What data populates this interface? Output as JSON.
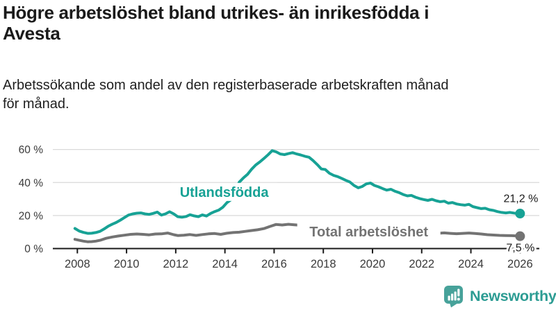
{
  "header": {
    "title_lines": [
      "Högre arbetslöshet bland utrikes- än inrikesfödda i",
      "Avesta"
    ],
    "subtitle_lines": [
      "Arbetssökande som andel av den registerbaserade arbetskraften månad",
      "för månad."
    ]
  },
  "chart_data": {
    "type": "line",
    "title": "Högre arbetslöshet bland utrikes- än inrikesfödda i Avesta",
    "subtitle": "Arbetssökande som andel av den registerbaserade arbetskraften månad för månad.",
    "xlabel": "",
    "ylabel": "",
    "x_ticks": [
      2008,
      2010,
      2012,
      2014,
      2016,
      2018,
      2020,
      2022,
      2024,
      2026
    ],
    "y_ticks": [
      0,
      20,
      40,
      60
    ],
    "y_tick_suffix": " %",
    "xlim": [
      2007.9,
      2026.8
    ],
    "ylim": [
      0,
      65
    ],
    "grid": true,
    "grid_color": "#d9d9d9",
    "axis_color": "#1a1a1a",
    "series": [
      {
        "name": "Utlandsfödda",
        "color": "#17a295",
        "end_label": "21,2 %",
        "end_value": 21.2,
        "label_anchor": [
          2013.97,
          34.3
        ],
        "label_box": [
          152,
          26
        ],
        "end_label_offset": [
          26,
          -16.5
        ],
        "points": [
          [
            2007.9,
            12.2
          ],
          [
            2008.08,
            10.6
          ],
          [
            2008.25,
            9.8
          ],
          [
            2008.42,
            9.2
          ],
          [
            2008.58,
            9.3
          ],
          [
            2008.75,
            9.7
          ],
          [
            2008.92,
            10.4
          ],
          [
            2009.08,
            11.8
          ],
          [
            2009.25,
            13.5
          ],
          [
            2009.42,
            14.8
          ],
          [
            2009.58,
            15.8
          ],
          [
            2009.75,
            17.2
          ],
          [
            2009.92,
            18.8
          ],
          [
            2010.08,
            20.3
          ],
          [
            2010.25,
            21.0
          ],
          [
            2010.42,
            21.4
          ],
          [
            2010.58,
            21.6
          ],
          [
            2010.75,
            21.0
          ],
          [
            2010.92,
            20.7
          ],
          [
            2011.08,
            21.3
          ],
          [
            2011.25,
            22.1
          ],
          [
            2011.42,
            20.3
          ],
          [
            2011.58,
            21.0
          ],
          [
            2011.75,
            22.3
          ],
          [
            2011.92,
            21.0
          ],
          [
            2012.08,
            19.3
          ],
          [
            2012.25,
            19.0
          ],
          [
            2012.42,
            19.4
          ],
          [
            2012.58,
            20.5
          ],
          [
            2012.75,
            19.8
          ],
          [
            2012.92,
            19.3
          ],
          [
            2013.08,
            20.4
          ],
          [
            2013.25,
            19.7
          ],
          [
            2013.42,
            21.3
          ],
          [
            2013.58,
            22.4
          ],
          [
            2013.75,
            23.3
          ],
          [
            2013.92,
            25.1
          ],
          [
            2014.08,
            27.8
          ],
          [
            2014.25,
            29.6
          ],
          [
            2014.42,
            34.5
          ],
          [
            2014.58,
            40.2
          ],
          [
            2014.75,
            42.8
          ],
          [
            2014.92,
            45.0
          ],
          [
            2015.08,
            48.0
          ],
          [
            2015.25,
            50.6
          ],
          [
            2015.42,
            52.5
          ],
          [
            2015.58,
            54.5
          ],
          [
            2015.75,
            56.8
          ],
          [
            2015.92,
            59.3
          ],
          [
            2016.08,
            58.6
          ],
          [
            2016.25,
            57.3
          ],
          [
            2016.42,
            56.9
          ],
          [
            2016.58,
            57.5
          ],
          [
            2016.75,
            58.1
          ],
          [
            2016.92,
            57.3
          ],
          [
            2017.08,
            56.7
          ],
          [
            2017.25,
            55.9
          ],
          [
            2017.42,
            55.3
          ],
          [
            2017.58,
            53.4
          ],
          [
            2017.75,
            50.9
          ],
          [
            2017.92,
            48.2
          ],
          [
            2018.08,
            47.9
          ],
          [
            2018.25,
            45.6
          ],
          [
            2018.42,
            44.3
          ],
          [
            2018.58,
            43.6
          ],
          [
            2018.75,
            42.5
          ],
          [
            2018.92,
            41.3
          ],
          [
            2019.08,
            40.3
          ],
          [
            2019.25,
            38.2
          ],
          [
            2019.42,
            36.8
          ],
          [
            2019.58,
            37.6
          ],
          [
            2019.75,
            39.2
          ],
          [
            2019.92,
            39.7
          ],
          [
            2020.08,
            38.2
          ],
          [
            2020.25,
            37.4
          ],
          [
            2020.42,
            36.3
          ],
          [
            2020.58,
            35.4
          ],
          [
            2020.75,
            35.9
          ],
          [
            2020.92,
            34.7
          ],
          [
            2021.08,
            33.9
          ],
          [
            2021.25,
            32.7
          ],
          [
            2021.42,
            31.9
          ],
          [
            2021.58,
            32.2
          ],
          [
            2021.75,
            31.1
          ],
          [
            2021.92,
            30.3
          ],
          [
            2022.08,
            29.7
          ],
          [
            2022.25,
            29.2
          ],
          [
            2022.42,
            29.8
          ],
          [
            2022.58,
            29.0
          ],
          [
            2022.75,
            28.4
          ],
          [
            2022.92,
            28.7
          ],
          [
            2023.08,
            27.5
          ],
          [
            2023.25,
            27.9
          ],
          [
            2023.42,
            27.0
          ],
          [
            2023.58,
            26.6
          ],
          [
            2023.75,
            26.3
          ],
          [
            2023.92,
            26.8
          ],
          [
            2024.08,
            25.4
          ],
          [
            2024.25,
            24.8
          ],
          [
            2024.42,
            24.2
          ],
          [
            2024.58,
            24.4
          ],
          [
            2024.75,
            23.5
          ],
          [
            2024.92,
            23.1
          ],
          [
            2025.08,
            22.4
          ],
          [
            2025.25,
            21.9
          ],
          [
            2025.42,
            21.6
          ],
          [
            2025.58,
            21.9
          ],
          [
            2025.75,
            21.5
          ],
          [
            2025.92,
            21.1
          ],
          [
            2026.0,
            21.2
          ]
        ]
      },
      {
        "name": "Total arbetslöshet",
        "color": "#737373",
        "end_label": "7,5 %",
        "end_value": 7.5,
        "label_anchor": [
          2019.85,
          10.3
        ],
        "label_box": [
          206,
          26
        ],
        "end_label_offset": [
          21,
          21.8
        ],
        "points": [
          [
            2007.9,
            5.6
          ],
          [
            2008.08,
            5.0
          ],
          [
            2008.25,
            4.5
          ],
          [
            2008.42,
            4.1
          ],
          [
            2008.58,
            4.2
          ],
          [
            2008.75,
            4.5
          ],
          [
            2008.92,
            5.0
          ],
          [
            2009.17,
            6.2
          ],
          [
            2009.42,
            7.0
          ],
          [
            2009.67,
            7.6
          ],
          [
            2009.92,
            8.1
          ],
          [
            2010.17,
            8.6
          ],
          [
            2010.42,
            8.8
          ],
          [
            2010.67,
            8.6
          ],
          [
            2010.92,
            8.3
          ],
          [
            2011.17,
            8.8
          ],
          [
            2011.42,
            8.9
          ],
          [
            2011.67,
            9.4
          ],
          [
            2011.92,
            8.4
          ],
          [
            2012.08,
            7.9
          ],
          [
            2012.33,
            8.1
          ],
          [
            2012.58,
            8.5
          ],
          [
            2012.83,
            8.0
          ],
          [
            2013.08,
            8.5
          ],
          [
            2013.33,
            8.9
          ],
          [
            2013.58,
            9.1
          ],
          [
            2013.83,
            8.6
          ],
          [
            2014.08,
            9.3
          ],
          [
            2014.33,
            9.7
          ],
          [
            2014.58,
            9.9
          ],
          [
            2014.83,
            10.4
          ],
          [
            2015.08,
            10.9
          ],
          [
            2015.33,
            11.4
          ],
          [
            2015.58,
            12.1
          ],
          [
            2015.83,
            13.4
          ],
          [
            2016.08,
            14.6
          ],
          [
            2016.33,
            14.3
          ],
          [
            2016.58,
            14.7
          ],
          [
            2016.83,
            14.4
          ],
          [
            2017.08,
            14.1
          ],
          [
            2017.33,
            13.7
          ],
          [
            2017.58,
            13.1
          ],
          [
            2018.0,
            12.3
          ],
          [
            2018.5,
            11.5
          ],
          [
            2019.0,
            10.8
          ],
          [
            2019.5,
            10.4
          ],
          [
            2020.0,
            10.7
          ],
          [
            2020.5,
            10.2
          ],
          [
            2021.0,
            9.8
          ],
          [
            2021.5,
            9.5
          ],
          [
            2022.0,
            9.3
          ],
          [
            2022.42,
            9.1
          ],
          [
            2022.67,
            9.3
          ],
          [
            2022.92,
            9.5
          ],
          [
            2023.17,
            9.2
          ],
          [
            2023.42,
            9.0
          ],
          [
            2023.67,
            9.2
          ],
          [
            2023.92,
            9.4
          ],
          [
            2024.17,
            9.1
          ],
          [
            2024.42,
            8.8
          ],
          [
            2024.67,
            8.4
          ],
          [
            2024.92,
            8.2
          ],
          [
            2025.17,
            8.0
          ],
          [
            2025.42,
            7.9
          ],
          [
            2025.67,
            7.8
          ],
          [
            2025.92,
            7.6
          ],
          [
            2026.0,
            7.5
          ]
        ]
      }
    ]
  },
  "footer": {
    "brand": "Newsworthy"
  },
  "colors": {
    "accent_teal": "#17a295",
    "series_gray": "#737373",
    "logo_badge": "#47a29a",
    "logo_text": "#2c9c93"
  }
}
